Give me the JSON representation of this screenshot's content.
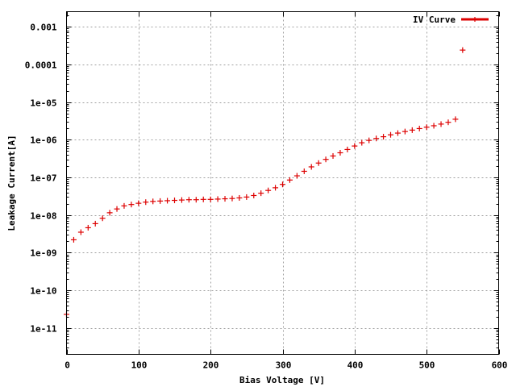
{
  "chart_data": {
    "type": "scatter",
    "xlabel": "Bias Voltage [V]",
    "ylabel": "Leakage Current[A]",
    "xlim": [
      0,
      600
    ],
    "ylim_log10": [
      -11.7,
      -2.6
    ],
    "y_scale": "log",
    "grid": true,
    "legend": "top-right",
    "x_ticks": [
      {
        "value": 0,
        "label": "0"
      },
      {
        "value": 100,
        "label": "100"
      },
      {
        "value": 200,
        "label": "200"
      },
      {
        "value": 300,
        "label": "300"
      },
      {
        "value": 400,
        "label": "400"
      },
      {
        "value": 500,
        "label": "500"
      },
      {
        "value": 600,
        "label": "600"
      }
    ],
    "y_ticks": [
      {
        "value": 1e-11,
        "label": "1e-11"
      },
      {
        "value": 1e-10,
        "label": "1e-10"
      },
      {
        "value": 1e-09,
        "label": "1e-09"
      },
      {
        "value": 1e-08,
        "label": "1e-08"
      },
      {
        "value": 1e-07,
        "label": "1e-07"
      },
      {
        "value": 1e-06,
        "label": "1e-06"
      },
      {
        "value": 1e-05,
        "label": "1e-05"
      },
      {
        "value": 0.0001,
        "label": "0.0001"
      },
      {
        "value": 0.001,
        "label": "0.001"
      }
    ],
    "series": [
      {
        "name": "IV Curve",
        "color": "#dd0000",
        "marker": "plus",
        "x": [
          0,
          10,
          20,
          30,
          40,
          50,
          60,
          70,
          80,
          90,
          100,
          110,
          120,
          130,
          140,
          150,
          160,
          170,
          180,
          190,
          200,
          210,
          220,
          230,
          240,
          250,
          260,
          270,
          280,
          290,
          300,
          310,
          320,
          330,
          340,
          350,
          360,
          370,
          380,
          390,
          400,
          410,
          420,
          430,
          440,
          450,
          460,
          470,
          480,
          490,
          500,
          510,
          520,
          530,
          540,
          550
        ],
        "y": [
          2.3e-11,
          2.2e-09,
          3.5e-09,
          4.6e-09,
          5.9e-09,
          8.2e-09,
          1.15e-08,
          1.45e-08,
          1.75e-08,
          1.9e-08,
          2.05e-08,
          2.2e-08,
          2.3e-08,
          2.35e-08,
          2.4e-08,
          2.45e-08,
          2.5e-08,
          2.55e-08,
          2.55e-08,
          2.6e-08,
          2.6e-08,
          2.65e-08,
          2.7e-08,
          2.75e-08,
          2.85e-08,
          3e-08,
          3.3e-08,
          3.8e-08,
          4.5e-08,
          5.3e-08,
          6.5e-08,
          8.5e-08,
          1.1e-07,
          1.45e-07,
          1.9e-07,
          2.4e-07,
          3e-07,
          3.7e-07,
          4.5e-07,
          5.5e-07,
          6.8e-07,
          8.3e-07,
          9.6e-07,
          1.08e-06,
          1.2e-06,
          1.35e-06,
          1.5e-06,
          1.65e-06,
          1.8e-06,
          1.98e-06,
          2.15e-06,
          2.35e-06,
          2.6e-06,
          2.9e-06,
          3.5e-06,
          0.00024
        ]
      }
    ]
  }
}
